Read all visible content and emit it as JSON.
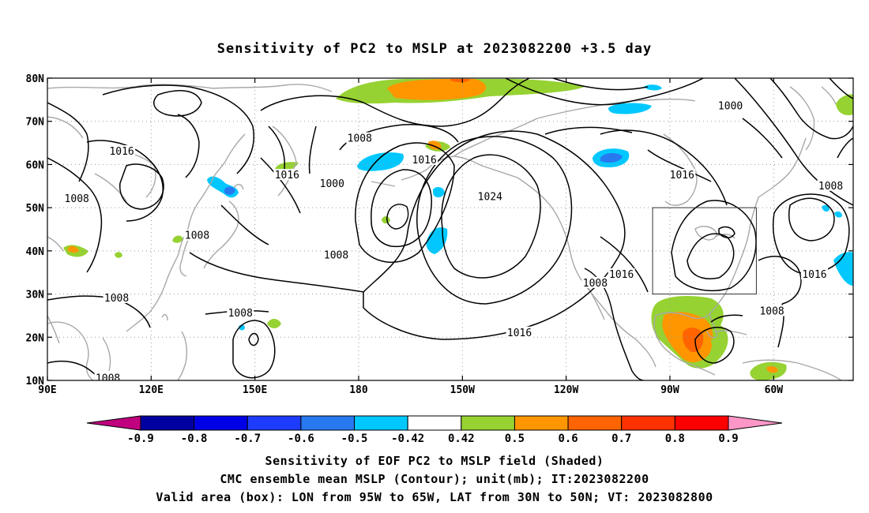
{
  "title": "Sensitivity of PC2 to MSLP at 2023082200 +3.5 day",
  "map": {
    "lat_labels": [
      "80N",
      "70N",
      "60N",
      "50N",
      "40N",
      "30N",
      "20N",
      "10N"
    ],
    "lon_labels": [
      "90E",
      "120E",
      "150E",
      "180",
      "150W",
      "120W",
      "90W",
      "60W"
    ],
    "lon_values": [
      90,
      120,
      150,
      180,
      210,
      240,
      270,
      300
    ],
    "lat_values": [
      80,
      70,
      60,
      50,
      40,
      30,
      20,
      10
    ],
    "lon_range": [
      90,
      323
    ],
    "lat_range": [
      10,
      80
    ],
    "valid_box": {
      "lon_w": 265,
      "lon_e": 295,
      "lat_s": 30,
      "lat_n": 50
    }
  },
  "contour_labels": [
    {
      "text": "1000",
      "lon": 287.5,
      "lat": 73.5
    },
    {
      "text": "1008",
      "lon": 180.3,
      "lat": 66
    },
    {
      "text": "1016",
      "lon": 111.5,
      "lat": 63
    },
    {
      "text": "1016",
      "lon": 199,
      "lat": 61
    },
    {
      "text": "1016",
      "lon": 159.3,
      "lat": 57.5
    },
    {
      "text": "1016",
      "lon": 273.5,
      "lat": 57.5
    },
    {
      "text": "1000",
      "lon": 172.3,
      "lat": 55.5
    },
    {
      "text": "1008",
      "lon": 316.5,
      "lat": 55
    },
    {
      "text": "1024",
      "lon": 218,
      "lat": 52.5
    },
    {
      "text": "1008",
      "lon": 98.5,
      "lat": 52
    },
    {
      "text": "1008",
      "lon": 133.3,
      "lat": 43.5
    },
    {
      "text": "1008",
      "lon": 173.5,
      "lat": 39
    },
    {
      "text": "1016",
      "lon": 256,
      "lat": 34.5
    },
    {
      "text": "1016",
      "lon": 311.8,
      "lat": 34.5
    },
    {
      "text": "1008",
      "lon": 248.4,
      "lat": 32.5
    },
    {
      "text": "1008",
      "lon": 110,
      "lat": 29
    },
    {
      "text": "1008",
      "lon": 145.8,
      "lat": 25.5
    },
    {
      "text": "1008",
      "lon": 299.5,
      "lat": 26
    },
    {
      "text": "1016",
      "lon": 226.5,
      "lat": 21
    },
    {
      "text": "1008",
      "lon": 107.5,
      "lat": 10.5
    }
  ],
  "colorbar": {
    "ticks": [
      "-0.9",
      "-0.8",
      "-0.7",
      "-0.6",
      "-0.5",
      "-0.42",
      "0.42",
      "0.5",
      "0.6",
      "0.7",
      "0.8",
      "0.9"
    ],
    "colors": [
      "#c0007f",
      "#0000a0",
      "#0000e6",
      "#1e3cff",
      "#2878f0",
      "#00c8ff",
      "#ffffff",
      "#96d232",
      "#ff9600",
      "#ff6400",
      "#ff3200",
      "#ff0000",
      "#ff96c8"
    ]
  },
  "footer": {
    "line1": "Sensitivity of EOF PC2 to MSLP field (Shaded)",
    "line2": "CMC ensemble mean MSLP (Contour); unit(mb); IT:2023082200",
    "line3": "Valid area (box): LON from 95W to 65W, LAT from 30N to 50N; VT: 2023082800"
  }
}
